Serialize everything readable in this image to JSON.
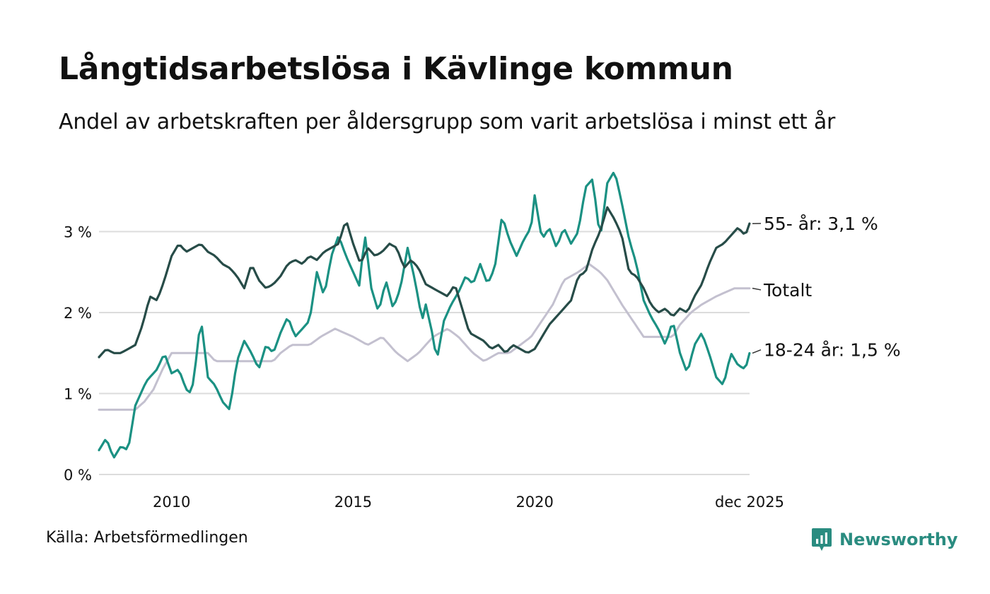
{
  "title": "Långtidsarbetslösa i Kävlinge kommun",
  "subtitle": "Andel av arbetskraften per åldersgrupp som varit arbetslösa i minst ett år",
  "source": "Källa: Arbetsförmedlingen",
  "brand": {
    "name": "Newsworthy",
    "icon": "newsworthy-logo-icon",
    "color": "#2a8c80"
  },
  "chart_data": {
    "type": "line",
    "x_start": 2008.0,
    "x_step": 0.08333,
    "xlim": [
      2008.0,
      2025.917
    ],
    "ylim": [
      0,
      3.9
    ],
    "yticks": [
      {
        "value": 0,
        "label": "0 %"
      },
      {
        "value": 1,
        "label": "1 %"
      },
      {
        "value": 2,
        "label": "2 %"
      },
      {
        "value": 3,
        "label": "3 %"
      }
    ],
    "xticks": [
      {
        "value": 2010,
        "label": "2010"
      },
      {
        "value": 2015,
        "label": "2015"
      },
      {
        "value": 2020,
        "label": "2020"
      },
      {
        "value": 2025.917,
        "label": "dec 2025"
      }
    ],
    "grid": true,
    "series": [
      {
        "name": "Totalt",
        "color": "#c3c0cf",
        "label": "Totalt",
        "knots": [
          [
            2008.0,
            0.8
          ],
          [
            2009.0,
            0.8
          ],
          [
            2009.25,
            0.9
          ],
          [
            2009.5,
            1.05
          ],
          [
            2009.75,
            1.3
          ],
          [
            2010.0,
            1.5
          ],
          [
            2011.0,
            1.5
          ],
          [
            2011.2,
            1.4
          ],
          [
            2011.9,
            1.4
          ],
          [
            2012.5,
            1.4
          ],
          [
            2012.8,
            1.4
          ],
          [
            2013.0,
            1.5
          ],
          [
            2013.3,
            1.6
          ],
          [
            2013.8,
            1.6
          ],
          [
            2014.1,
            1.7
          ],
          [
            2014.5,
            1.8
          ],
          [
            2015.0,
            1.7
          ],
          [
            2015.4,
            1.6
          ],
          [
            2015.8,
            1.7
          ],
          [
            2016.2,
            1.5
          ],
          [
            2016.5,
            1.4
          ],
          [
            2016.8,
            1.5
          ],
          [
            2017.2,
            1.7
          ],
          [
            2017.6,
            1.8
          ],
          [
            2017.9,
            1.7
          ],
          [
            2018.3,
            1.5
          ],
          [
            2018.6,
            1.4
          ],
          [
            2019.0,
            1.5
          ],
          [
            2019.3,
            1.5
          ],
          [
            2019.6,
            1.6
          ],
          [
            2019.9,
            1.7
          ],
          [
            2020.2,
            1.9
          ],
          [
            2020.5,
            2.1
          ],
          [
            2020.8,
            2.4
          ],
          [
            2021.2,
            2.5
          ],
          [
            2021.5,
            2.6
          ],
          [
            2021.8,
            2.5
          ],
          [
            2022.0,
            2.4
          ],
          [
            2022.4,
            2.1
          ],
          [
            2022.7,
            1.9
          ],
          [
            2023.0,
            1.7
          ],
          [
            2023.4,
            1.7
          ],
          [
            2023.8,
            1.7
          ],
          [
            2024.0,
            1.85
          ],
          [
            2024.3,
            2.0
          ],
          [
            2024.6,
            2.1
          ],
          [
            2025.0,
            2.2
          ],
          [
            2025.5,
            2.3
          ],
          [
            2025.917,
            2.3
          ]
        ]
      },
      {
        "name": "18-24 år",
        "color": "#1b9183",
        "label": "18-24 år: 1,5 %",
        "knots": [
          [
            2008.0,
            0.3
          ],
          [
            2008.2,
            0.45
          ],
          [
            2008.4,
            0.2
          ],
          [
            2008.6,
            0.35
          ],
          [
            2008.8,
            0.3
          ],
          [
            2009.0,
            0.85
          ],
          [
            2009.3,
            1.15
          ],
          [
            2009.6,
            1.3
          ],
          [
            2009.8,
            1.5
          ],
          [
            2010.0,
            1.25
          ],
          [
            2010.2,
            1.3
          ],
          [
            2010.4,
            1.05
          ],
          [
            2010.55,
            1.0
          ],
          [
            2010.7,
            1.5
          ],
          [
            2010.8,
            1.95
          ],
          [
            2011.0,
            1.2
          ],
          [
            2011.2,
            1.1
          ],
          [
            2011.4,
            0.9
          ],
          [
            2011.6,
            0.8
          ],
          [
            2011.8,
            1.4
          ],
          [
            2012.0,
            1.65
          ],
          [
            2012.2,
            1.5
          ],
          [
            2012.4,
            1.3
          ],
          [
            2012.6,
            1.6
          ],
          [
            2012.8,
            1.5
          ],
          [
            2013.0,
            1.75
          ],
          [
            2013.2,
            1.95
          ],
          [
            2013.4,
            1.7
          ],
          [
            2013.6,
            1.8
          ],
          [
            2013.8,
            1.9
          ],
          [
            2014.0,
            2.5
          ],
          [
            2014.2,
            2.2
          ],
          [
            2014.4,
            2.7
          ],
          [
            2014.6,
            2.95
          ],
          [
            2014.8,
            2.7
          ],
          [
            2015.0,
            2.5
          ],
          [
            2015.2,
            2.3
          ],
          [
            2015.3,
            3.05
          ],
          [
            2015.5,
            2.3
          ],
          [
            2015.7,
            2.0
          ],
          [
            2015.9,
            2.4
          ],
          [
            2016.1,
            2.05
          ],
          [
            2016.3,
            2.3
          ],
          [
            2016.5,
            2.8
          ],
          [
            2016.7,
            2.4
          ],
          [
            2016.9,
            1.9
          ],
          [
            2017.0,
            2.1
          ],
          [
            2017.2,
            1.7
          ],
          [
            2017.3,
            1.4
          ],
          [
            2017.5,
            1.9
          ],
          [
            2017.7,
            2.1
          ],
          [
            2017.9,
            2.25
          ],
          [
            2018.1,
            2.45
          ],
          [
            2018.3,
            2.35
          ],
          [
            2018.5,
            2.6
          ],
          [
            2018.7,
            2.35
          ],
          [
            2018.9,
            2.55
          ],
          [
            2019.1,
            3.2
          ],
          [
            2019.3,
            2.9
          ],
          [
            2019.5,
            2.7
          ],
          [
            2019.7,
            2.9
          ],
          [
            2019.9,
            3.05
          ],
          [
            2020.0,
            3.45
          ],
          [
            2020.2,
            2.9
          ],
          [
            2020.4,
            3.05
          ],
          [
            2020.6,
            2.8
          ],
          [
            2020.8,
            3.05
          ],
          [
            2021.0,
            2.85
          ],
          [
            2021.2,
            3.0
          ],
          [
            2021.4,
            3.55
          ],
          [
            2021.6,
            3.65
          ],
          [
            2021.8,
            2.9
          ],
          [
            2022.0,
            3.6
          ],
          [
            2022.2,
            3.75
          ],
          [
            2022.4,
            3.35
          ],
          [
            2022.6,
            2.9
          ],
          [
            2022.8,
            2.6
          ],
          [
            2023.0,
            2.15
          ],
          [
            2023.2,
            1.95
          ],
          [
            2023.4,
            1.8
          ],
          [
            2023.6,
            1.6
          ],
          [
            2023.8,
            1.9
          ],
          [
            2024.0,
            1.5
          ],
          [
            2024.2,
            1.25
          ],
          [
            2024.4,
            1.6
          ],
          [
            2024.6,
            1.75
          ],
          [
            2024.8,
            1.5
          ],
          [
            2025.0,
            1.2
          ],
          [
            2025.2,
            1.1
          ],
          [
            2025.4,
            1.5
          ],
          [
            2025.6,
            1.35
          ],
          [
            2025.8,
            1.3
          ],
          [
            2025.917,
            1.5
          ]
        ]
      },
      {
        "name": "55- år",
        "color": "#274c48",
        "label": "55- år: 3,1 %",
        "knots": [
          [
            2008.0,
            1.45
          ],
          [
            2008.2,
            1.55
          ],
          [
            2008.4,
            1.5
          ],
          [
            2008.6,
            1.5
          ],
          [
            2008.8,
            1.55
          ],
          [
            2009.0,
            1.6
          ],
          [
            2009.2,
            1.85
          ],
          [
            2009.4,
            2.2
          ],
          [
            2009.6,
            2.15
          ],
          [
            2009.8,
            2.4
          ],
          [
            2010.0,
            2.7
          ],
          [
            2010.2,
            2.85
          ],
          [
            2010.4,
            2.75
          ],
          [
            2010.6,
            2.8
          ],
          [
            2010.8,
            2.85
          ],
          [
            2011.0,
            2.75
          ],
          [
            2011.2,
            2.7
          ],
          [
            2011.4,
            2.6
          ],
          [
            2011.6,
            2.55
          ],
          [
            2011.8,
            2.45
          ],
          [
            2012.0,
            2.3
          ],
          [
            2012.2,
            2.6
          ],
          [
            2012.4,
            2.4
          ],
          [
            2012.6,
            2.3
          ],
          [
            2012.8,
            2.35
          ],
          [
            2013.0,
            2.45
          ],
          [
            2013.2,
            2.6
          ],
          [
            2013.4,
            2.65
          ],
          [
            2013.6,
            2.6
          ],
          [
            2013.8,
            2.7
          ],
          [
            2014.0,
            2.65
          ],
          [
            2014.2,
            2.75
          ],
          [
            2014.4,
            2.8
          ],
          [
            2014.6,
            2.85
          ],
          [
            2014.8,
            3.15
          ],
          [
            2015.0,
            2.85
          ],
          [
            2015.2,
            2.6
          ],
          [
            2015.4,
            2.8
          ],
          [
            2015.6,
            2.7
          ],
          [
            2015.8,
            2.75
          ],
          [
            2016.0,
            2.85
          ],
          [
            2016.2,
            2.8
          ],
          [
            2016.4,
            2.55
          ],
          [
            2016.6,
            2.65
          ],
          [
            2016.8,
            2.55
          ],
          [
            2017.0,
            2.35
          ],
          [
            2017.2,
            2.3
          ],
          [
            2017.4,
            2.25
          ],
          [
            2017.6,
            2.2
          ],
          [
            2017.8,
            2.35
          ],
          [
            2018.0,
            2.05
          ],
          [
            2018.2,
            1.75
          ],
          [
            2018.4,
            1.7
          ],
          [
            2018.6,
            1.65
          ],
          [
            2018.8,
            1.55
          ],
          [
            2019.0,
            1.6
          ],
          [
            2019.2,
            1.5
          ],
          [
            2019.4,
            1.6
          ],
          [
            2019.6,
            1.55
          ],
          [
            2019.8,
            1.5
          ],
          [
            2020.0,
            1.55
          ],
          [
            2020.2,
            1.7
          ],
          [
            2020.4,
            1.85
          ],
          [
            2020.6,
            1.95
          ],
          [
            2020.8,
            2.05
          ],
          [
            2021.0,
            2.15
          ],
          [
            2021.2,
            2.45
          ],
          [
            2021.4,
            2.5
          ],
          [
            2021.6,
            2.8
          ],
          [
            2021.8,
            3.0
          ],
          [
            2022.0,
            3.3
          ],
          [
            2022.2,
            3.15
          ],
          [
            2022.4,
            2.95
          ],
          [
            2022.6,
            2.5
          ],
          [
            2022.8,
            2.45
          ],
          [
            2023.0,
            2.3
          ],
          [
            2023.2,
            2.1
          ],
          [
            2023.4,
            2.0
          ],
          [
            2023.6,
            2.05
          ],
          [
            2023.8,
            1.95
          ],
          [
            2024.0,
            2.05
          ],
          [
            2024.2,
            2.0
          ],
          [
            2024.4,
            2.2
          ],
          [
            2024.6,
            2.35
          ],
          [
            2024.8,
            2.6
          ],
          [
            2025.0,
            2.8
          ],
          [
            2025.2,
            2.85
          ],
          [
            2025.4,
            2.95
          ],
          [
            2025.6,
            3.05
          ],
          [
            2025.8,
            2.95
          ],
          [
            2025.917,
            3.1
          ]
        ]
      }
    ]
  }
}
